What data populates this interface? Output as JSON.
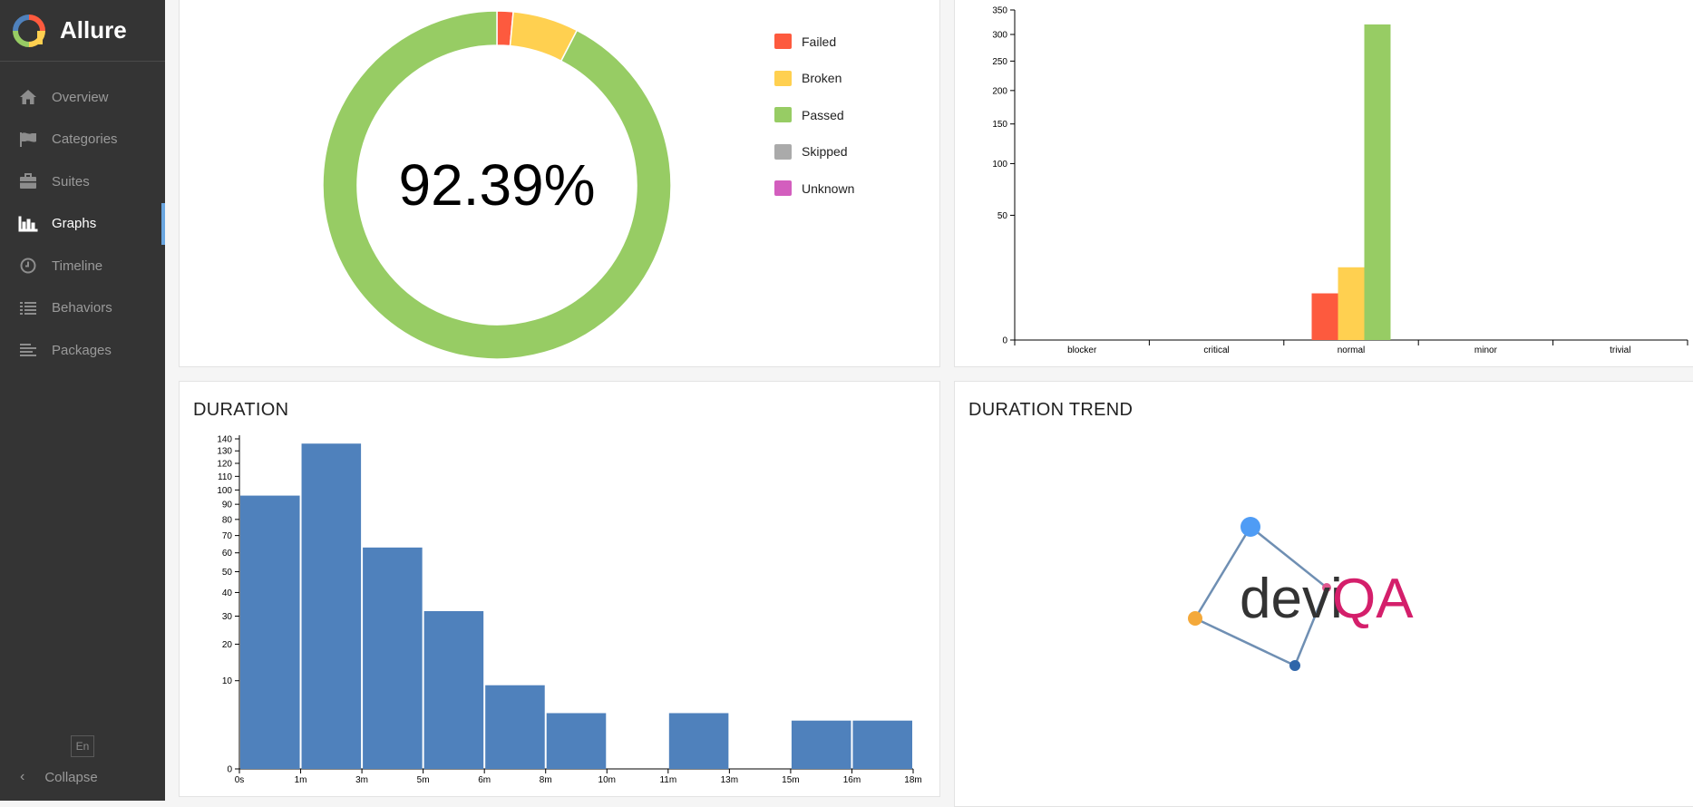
{
  "app": {
    "name": "Allure"
  },
  "sidebar": {
    "items": [
      {
        "label": "Overview",
        "icon": "home-icon"
      },
      {
        "label": "Categories",
        "icon": "flag-icon"
      },
      {
        "label": "Suites",
        "icon": "briefcase-icon"
      },
      {
        "label": "Graphs",
        "icon": "bar-chart-icon",
        "active": true
      },
      {
        "label": "Timeline",
        "icon": "clock-icon"
      },
      {
        "label": "Behaviors",
        "icon": "list-icon"
      },
      {
        "label": "Packages",
        "icon": "align-left-icon"
      }
    ],
    "language": "En",
    "collapse_label": "Collapse"
  },
  "status": {
    "percent_label": "92.39%",
    "legend": [
      {
        "label": "Failed",
        "color": "#fd5a3e"
      },
      {
        "label": "Broken",
        "color": "#ffd050"
      },
      {
        "label": "Passed",
        "color": "#97cc64"
      },
      {
        "label": "Skipped",
        "color": "#aaaaaa"
      },
      {
        "label": "Unknown",
        "color": "#d35ebe"
      }
    ]
  },
  "duration": {
    "title": "DURATION"
  },
  "duration_trend": {
    "title": "DURATION TREND",
    "logo_text_dark": "devi",
    "logo_text_accent": "QA"
  },
  "colors": {
    "failed": "#fd5a3e",
    "broken": "#ffd050",
    "passed": "#97cc64",
    "bar": "#4f81bc"
  },
  "chart_data": [
    {
      "type": "pie",
      "categories": [
        "Failed",
        "Broken",
        "Passed",
        "Skipped",
        "Unknown"
      ],
      "values": [
        1.5,
        6.1,
        92.39,
        0,
        0
      ],
      "center_label": "92.39%"
    },
    {
      "type": "bar",
      "categories": [
        "blocker",
        "critical",
        "normal",
        "minor",
        "trivial"
      ],
      "series": [
        {
          "name": "Failed",
          "values": [
            0,
            0,
            7,
            0,
            0
          ]
        },
        {
          "name": "Broken",
          "values": [
            0,
            0,
            17,
            0,
            0
          ]
        },
        {
          "name": "Passed",
          "values": [
            0,
            0,
            320,
            0,
            0
          ]
        }
      ],
      "yticks": [
        0,
        50,
        100,
        150,
        200,
        250,
        300,
        350
      ],
      "ylim": [
        0,
        350
      ]
    },
    {
      "type": "bar",
      "title": "DURATION",
      "categories": [
        "0s-1m",
        "1m-3m",
        "3m-5m",
        "5m-6m",
        "6m-8m",
        "8m-10m",
        "10m-11m",
        "11m-13m",
        "13m-15m",
        "15m-16m",
        "16m-18m"
      ],
      "values": [
        96,
        136,
        63,
        32,
        9,
        4,
        0,
        4,
        0,
        3,
        3
      ],
      "xticks": [
        "0s",
        "1m",
        "3m",
        "5m",
        "6m",
        "8m",
        "10m",
        "11m",
        "13m",
        "15m",
        "16m",
        "18m"
      ],
      "yticks": [
        0,
        10,
        20,
        30,
        40,
        50,
        60,
        70,
        80,
        90,
        100,
        110,
        120,
        130,
        140
      ],
      "ylim": [
        0,
        140
      ]
    }
  ]
}
